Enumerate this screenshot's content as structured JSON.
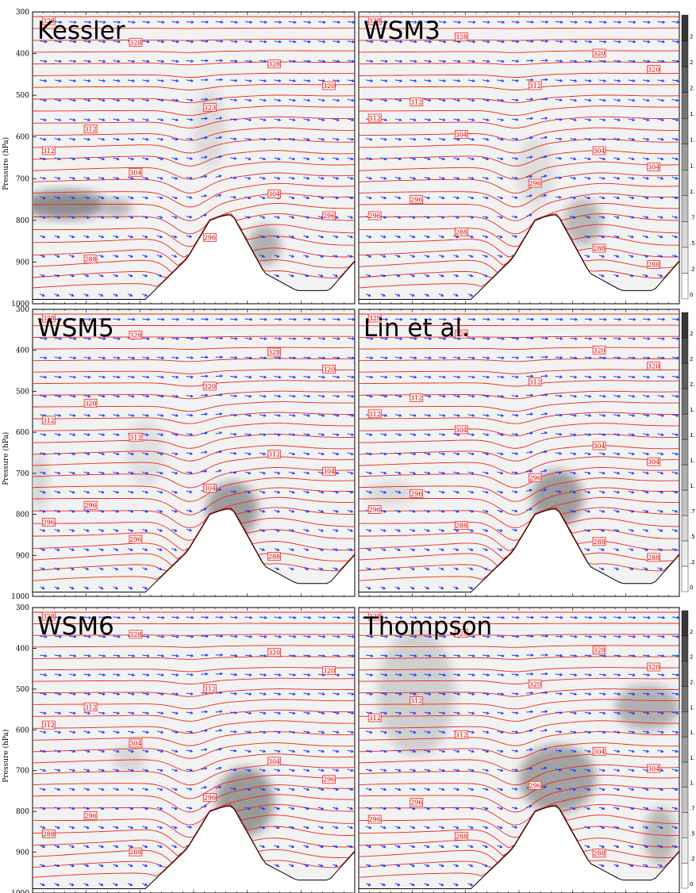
{
  "chart_data": {
    "type": "contour-cross-section",
    "y_axis": {
      "label": "Pressure (hPa)",
      "ticks": [
        300,
        400,
        500,
        600,
        700,
        800,
        900,
        1000
      ],
      "range": [
        300,
        1000
      ]
    },
    "colorbar": {
      "labels": [
        "0",
        ".2",
        ".5",
        ".7",
        "1.",
        "1.",
        "1.",
        "1.",
        "2.",
        "2",
        "2"
      ]
    },
    "panels": [
      {
        "title": "Kessler",
        "theta_labels": [
          "328",
          "328",
          "328",
          "320",
          "323",
          "312",
          "312",
          "304",
          "304",
          "296",
          "296",
          "288"
        ]
      },
      {
        "title": "WSM3",
        "theta_labels": [
          "328",
          "328",
          "320",
          "320",
          "312",
          "312",
          "312",
          "304",
          "304",
          "304",
          "296",
          "296",
          "296",
          "288",
          "288",
          "288"
        ]
      },
      {
        "title": "WSM5",
        "theta_labels": [
          "328",
          "328",
          "328",
          "320",
          "320",
          "320",
          "312",
          "312",
          "312",
          "304",
          "304",
          "296",
          "296",
          "296",
          "288"
        ]
      },
      {
        "title": "Lin et al.",
        "theta_labels": [
          "328",
          "320",
          "320",
          "320",
          "312",
          "312",
          "312",
          "304",
          "304",
          "304",
          "296",
          "296",
          "296",
          "288",
          "288",
          "288"
        ]
      },
      {
        "title": "WSM6",
        "theta_labels": [
          "328",
          "328",
          "320",
          "320",
          "312",
          "312",
          "312",
          "304",
          "304",
          "296",
          "296",
          "296",
          "288",
          "288"
        ]
      },
      {
        "title": "Thompson",
        "theta_labels": [
          "328",
          "328",
          "328",
          "320",
          "320",
          "312",
          "312",
          "312",
          "304",
          "304",
          "296",
          "296",
          "296",
          "288",
          "288"
        ]
      }
    ],
    "series": [
      {
        "name": "Potential temperature",
        "color": "#e8281e"
      },
      {
        "name": "Wind",
        "color": "#1c3cff"
      },
      {
        "name": "Cloud mixing ratio",
        "color": "#888888"
      }
    ],
    "grid": false
  },
  "colors": {
    "theta": "#e8281e",
    "wind": "#1c3cff",
    "terrain": "#000000",
    "shade_light": "#f2f2f2"
  }
}
